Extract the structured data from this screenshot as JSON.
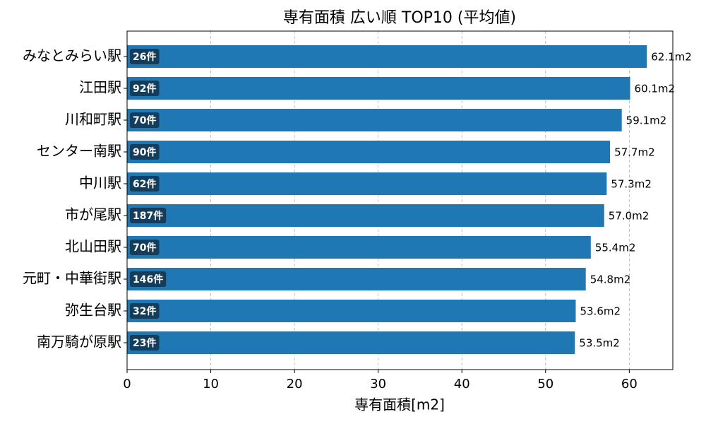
{
  "chart_data": {
    "type": "barh",
    "title": "専有面積 広い順 TOP10 (平均値)",
    "x_label": "専有面積[m2]",
    "categories": [
      "みなとみらい駅",
      "江田駅",
      "川和町駅",
      "センター南駅",
      "中川駅",
      "市が尾駅",
      "北山田駅",
      "元町・中華街駅",
      "弥生台駅",
      "南万騎が原駅"
    ],
    "values": [
      62.1,
      60.1,
      59.1,
      57.7,
      57.3,
      57.0,
      55.4,
      54.8,
      53.6,
      53.5
    ],
    "value_labels": [
      "62.1m2",
      "60.1m2",
      "59.1m2",
      "57.7m2",
      "57.3m2",
      "57.0m2",
      "55.4m2",
      "54.8m2",
      "53.6m2",
      "53.5m2"
    ],
    "count_labels": [
      "26件",
      "92件",
      "70件",
      "90件",
      "62件",
      "187件",
      "70件",
      "146件",
      "32件",
      "23件"
    ],
    "color": "#1f77b4",
    "badge_color": "#143d5c",
    "xlim": [
      0,
      65.2
    ],
    "xticks": [
      0,
      10,
      20,
      30,
      40,
      50,
      60
    ],
    "grid": true
  }
}
